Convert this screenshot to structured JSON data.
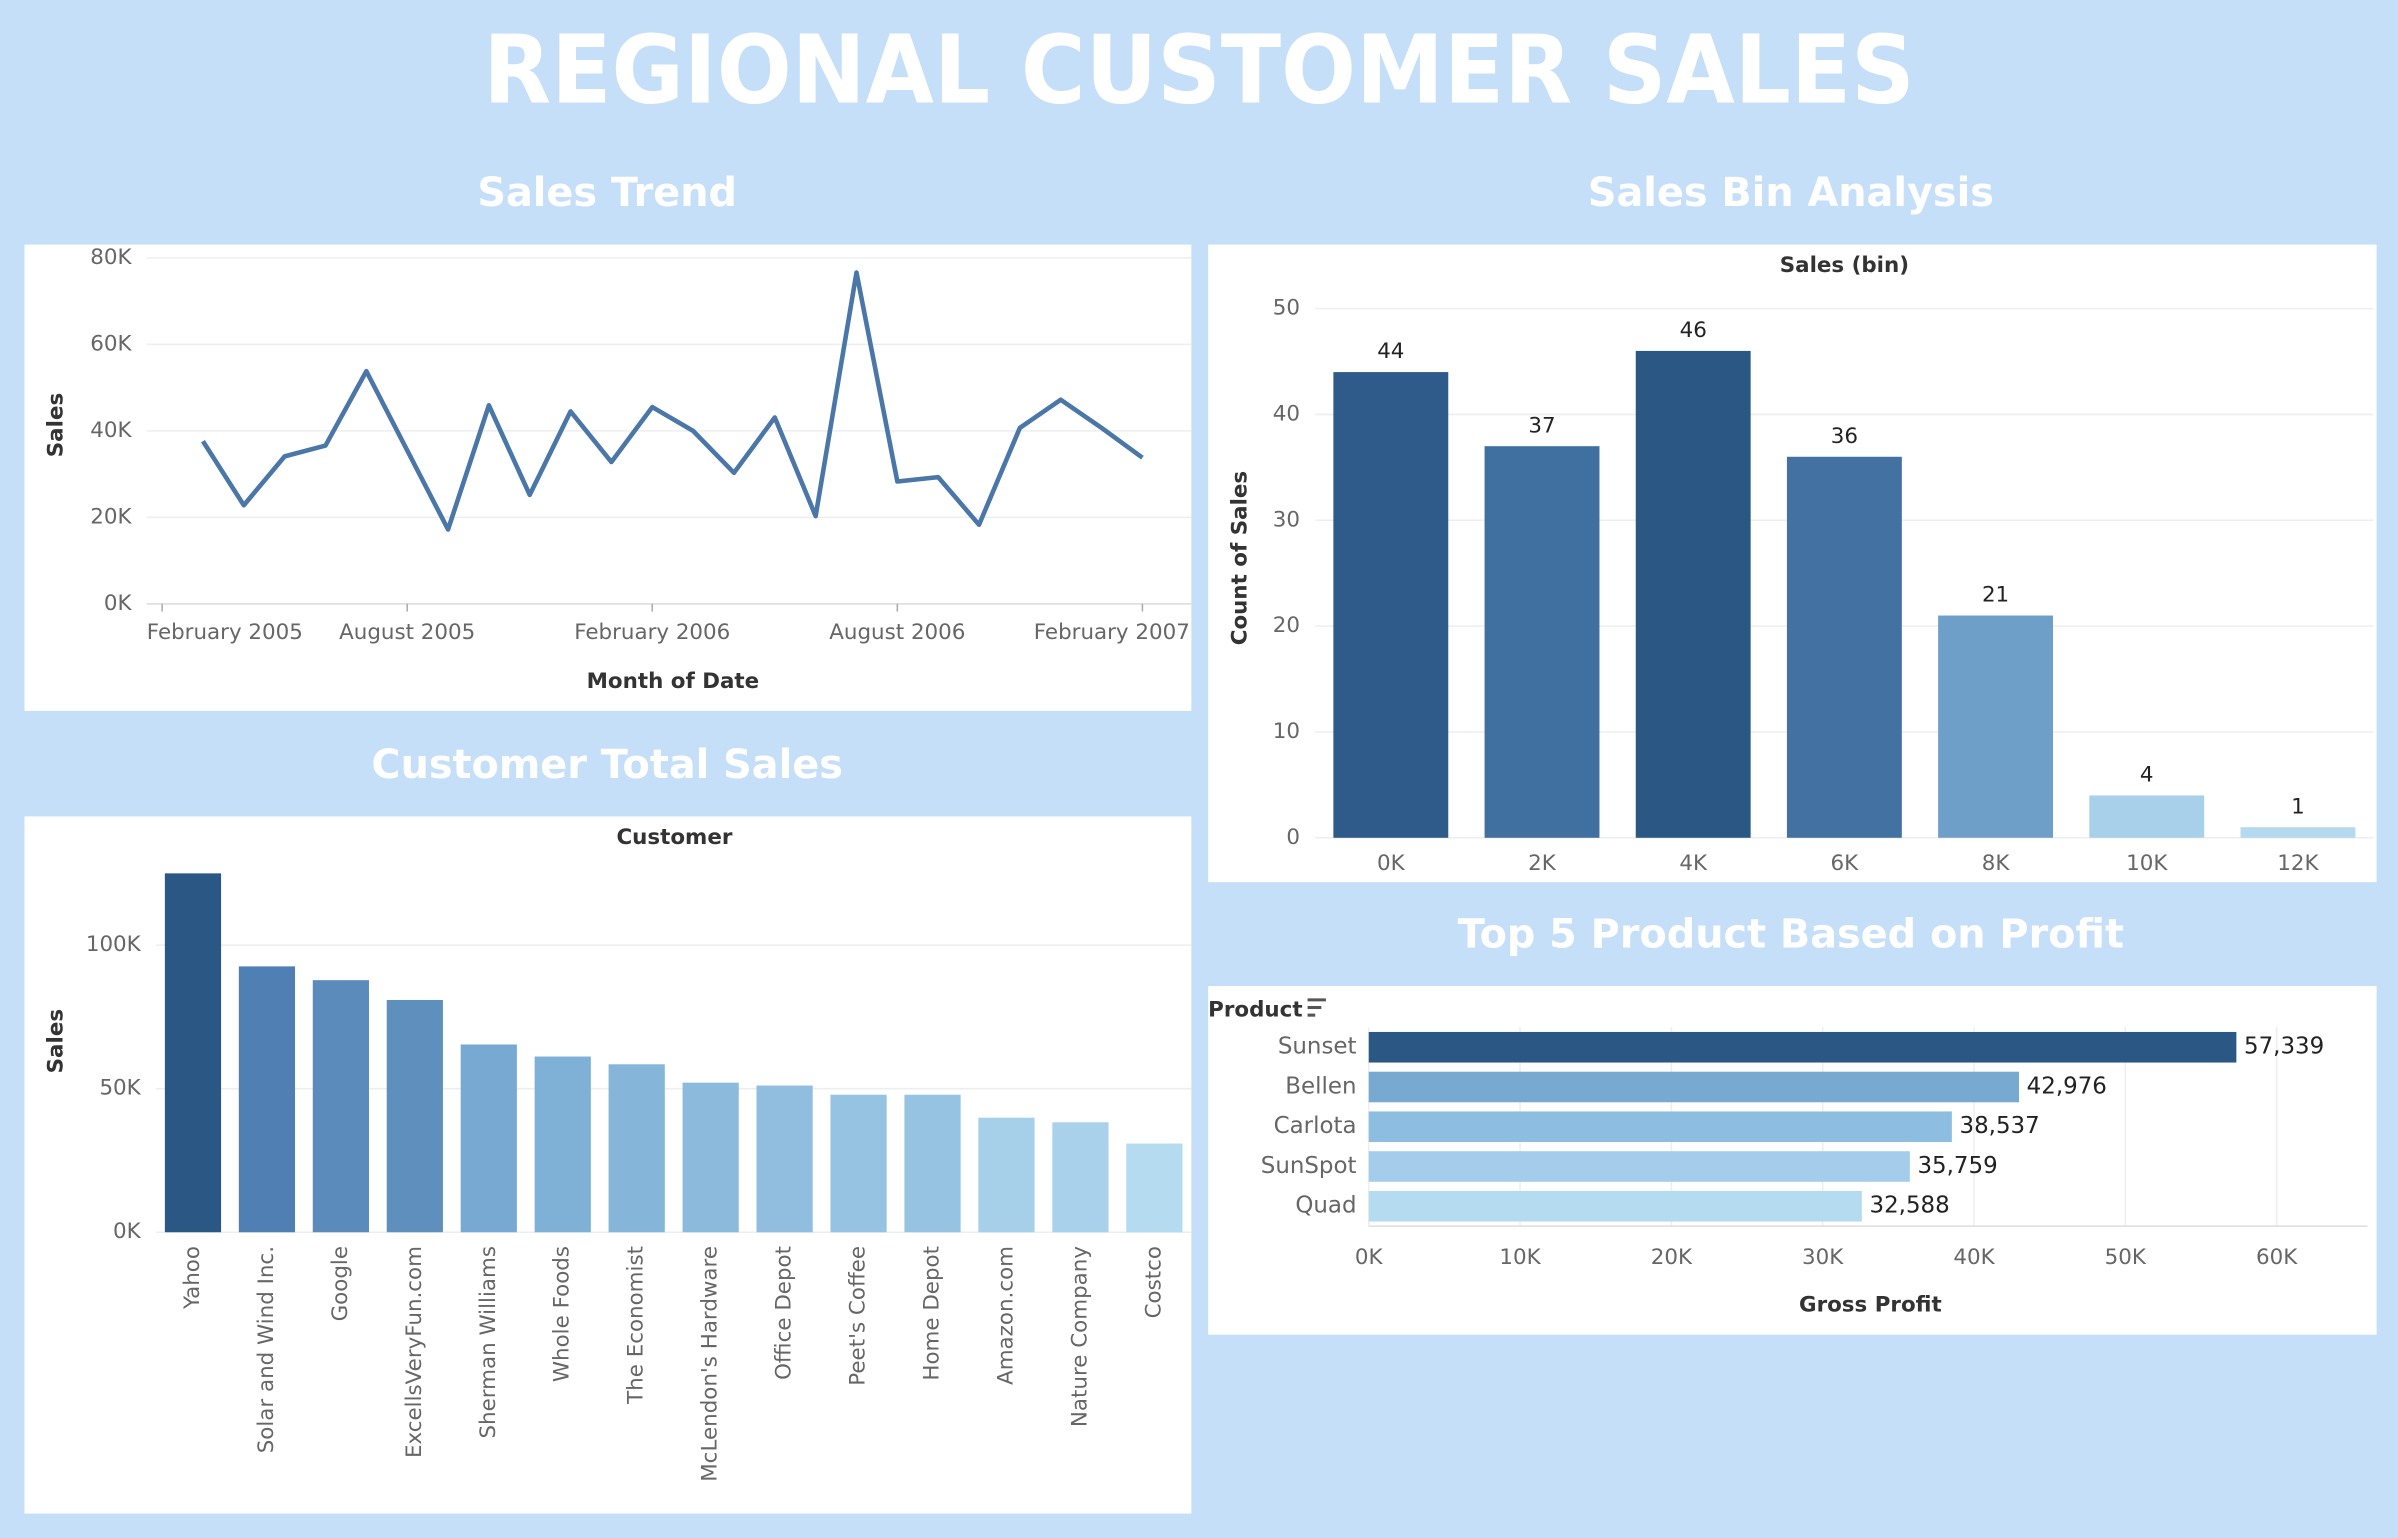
{
  "title": "REGIONAL CUSTOMER SALES",
  "chart_data": [
    {
      "type": "line",
      "title": "Sales Trend",
      "x_label": "Month of Date",
      "y_label": "Sales",
      "color": "#4a76a8",
      "x": [
        "2005-03",
        "2005-04",
        "2005-05",
        "2005-06",
        "2005-07",
        "2005-08",
        "2005-09",
        "2005-10",
        "2005-11",
        "2005-12",
        "2006-01",
        "2006-02",
        "2006-03",
        "2006-04",
        "2006-05",
        "2006-06",
        "2006-07",
        "2006-08",
        "2006-09",
        "2006-10",
        "2006-11",
        "2006-12",
        "2007-01",
        "2007-02"
      ],
      "values": [
        37600,
        22800,
        34100,
        36600,
        53800,
        35500,
        17200,
        45900,
        25200,
        44500,
        32800,
        45500,
        40000,
        30300,
        43100,
        20300,
        76600,
        28300,
        29300,
        18300,
        40700,
        47200,
        40700,
        33800
      ],
      "xlim": [
        "2005-02",
        "2007-02"
      ],
      "xticks": [
        {
          "value": "2005-02",
          "label": "February 2005"
        },
        {
          "value": "2005-08",
          "label": "August 2005"
        },
        {
          "value": "2006-02",
          "label": "February 2006"
        },
        {
          "value": "2006-08",
          "label": "August 2006"
        },
        {
          "value": "2007-02",
          "label": "February 2007"
        }
      ],
      "ylim": [
        0,
        82000
      ],
      "yticks": [
        {
          "value": 0,
          "label": "0K"
        },
        {
          "value": 20000,
          "label": "20K"
        },
        {
          "value": 40000,
          "label": "40K"
        },
        {
          "value": 60000,
          "label": "60K"
        },
        {
          "value": 80000,
          "label": "80K"
        }
      ],
      "grid": true
    },
    {
      "type": "bar",
      "title": "Sales Bin Analysis",
      "x_label": "Sales (bin)",
      "y_label": "Count of Sales",
      "categories": [
        "0K",
        "2K",
        "4K",
        "6K",
        "8K",
        "10K",
        "12K"
      ],
      "values": [
        44,
        37,
        46,
        36,
        21,
        4,
        1
      ],
      "colors": [
        "#2e5b8a",
        "#3f70a0",
        "#2a5783",
        "#4372a2",
        "#6e9fc8",
        "#a9d0ea",
        "#b5d9ef"
      ],
      "ylim": [
        0,
        52
      ],
      "yticks": [
        0,
        10,
        20,
        30,
        40,
        50
      ],
      "grid": true
    },
    {
      "type": "bar",
      "title": "Customer Total Sales",
      "x_label": "Customer",
      "y_label": "Sales",
      "categories": [
        "Yahoo",
        "Solar and Wind Inc.",
        "Google",
        "ExcellsVeryFun.com",
        "Sherman Williams",
        "Whole Foods",
        "The Economist",
        "McLendon's Hardware",
        "Office Depot",
        "Peet's Coffee",
        "Home Depot",
        "Amazon.com",
        "Nature Company",
        "Costco"
      ],
      "values": [
        125000,
        92600,
        87800,
        80900,
        65400,
        61200,
        58500,
        52100,
        51100,
        47900,
        47900,
        39900,
        38300,
        30900
      ],
      "colors": [
        "#2a5783",
        "#4f7fb3",
        "#5a8bba",
        "#5e8fbd",
        "#78a9d2",
        "#7fb0d6",
        "#85b5d9",
        "#8cbadc",
        "#91bedf",
        "#97c3e2",
        "#97c3e2",
        "#a6cfea",
        "#a9d1eb",
        "#b5dbf0"
      ],
      "ylim": [
        0,
        131000
      ],
      "yticks": [
        {
          "value": 0,
          "label": "0K"
        },
        {
          "value": 50000,
          "label": "50K"
        },
        {
          "value": 100000,
          "label": "100K"
        }
      ],
      "grid": true
    },
    {
      "type": "hbar",
      "title": "Top 5 Product Based on Profit",
      "x_label": "Gross Profit",
      "y_label": "Product",
      "categories": [
        "Sunset",
        "Bellen",
        "Carlota",
        "SunSpot",
        "Quad"
      ],
      "values": [
        57339,
        42976,
        38537,
        35759,
        32588
      ],
      "value_labels": [
        "57,339",
        "42,976",
        "38,537",
        "35,759",
        "32,588"
      ],
      "colors": [
        "#2a5783",
        "#78a9d0",
        "#8dbde0",
        "#a3cdea",
        "#b5dbf0"
      ],
      "xlim": [
        0,
        66000
      ],
      "xticks": [
        {
          "value": 0,
          "label": "0K"
        },
        {
          "value": 10000,
          "label": "10K"
        },
        {
          "value": 20000,
          "label": "20K"
        },
        {
          "value": 30000,
          "label": "30K"
        },
        {
          "value": 40000,
          "label": "40K"
        },
        {
          "value": 50000,
          "label": "50K"
        },
        {
          "value": 60000,
          "label": "60K"
        }
      ],
      "grid": true
    }
  ]
}
